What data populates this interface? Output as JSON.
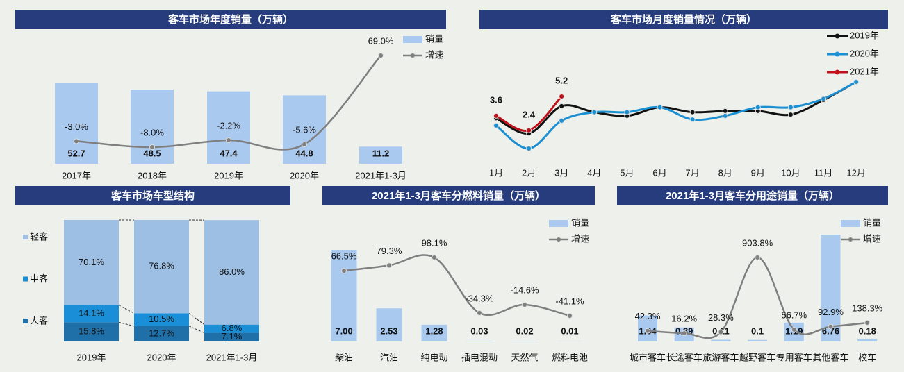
{
  "chart_data": [
    {
      "type": "combo",
      "title": "客车市场年度销量（万辆）",
      "categories": [
        "2017年",
        "2018年",
        "2019年",
        "2020年",
        "2021年1-3月"
      ],
      "series": [
        {
          "name": "销量",
          "color": "#a9c9ef",
          "values": [
            52.7,
            48.5,
            47.4,
            44.8,
            11.2
          ]
        },
        {
          "name": "增速",
          "color": "#7f7f7f",
          "values": [
            -3.0,
            -8.0,
            -2.2,
            -5.6,
            69.0
          ],
          "value_labels": [
            "-3.0%",
            "-8.0%",
            "-2.2%",
            "-5.6%",
            "69.0%"
          ]
        }
      ]
    },
    {
      "type": "line",
      "title": "客车市场月度销量情况（万辆）",
      "categories": [
        "1月",
        "2月",
        "3月",
        "4月",
        "5月",
        "6月",
        "7月",
        "8月",
        "9月",
        "10月",
        "11月",
        "12月"
      ],
      "series": [
        {
          "name": "2019年",
          "color": "#111111",
          "values": [
            3.4,
            2.15,
            4.4,
            3.9,
            3.6,
            4.3,
            3.9,
            4.0,
            4.0,
            3.7,
            4.9,
            6.4
          ]
        },
        {
          "name": "2020年",
          "color": "#1a8fd1",
          "values": [
            2.8,
            0.9,
            3.2,
            3.9,
            3.9,
            4.3,
            3.3,
            3.6,
            4.3,
            4.3,
            5.0,
            6.4
          ]
        },
        {
          "name": "2021年",
          "color": "#c0101a",
          "values": [
            3.6,
            2.4,
            5.2,
            null,
            null,
            null,
            null,
            null,
            null,
            null,
            null,
            null
          ]
        }
      ]
    },
    {
      "type": "stacked_bar",
      "title": "客车市场车型结构",
      "categories": [
        "2019年",
        "2020年",
        "2021年1-3月"
      ],
      "series": [
        {
          "name": "大客",
          "color": "#1f6fa8",
          "values": [
            15.8,
            12.7,
            7.1
          ],
          "value_labels": [
            "15.8%",
            "12.7%",
            "7.1%"
          ]
        },
        {
          "name": "中客",
          "color": "#1a8fd8",
          "values": [
            14.1,
            10.5,
            6.8
          ],
          "value_labels": [
            "14.1%",
            "10.5%",
            "6.8%"
          ]
        },
        {
          "name": "轻客",
          "color": "#9dbfe3",
          "values": [
            70.1,
            76.8,
            86.0
          ],
          "value_labels": [
            "70.1%",
            "76.8%",
            "86.0%"
          ]
        }
      ]
    },
    {
      "type": "combo",
      "title": "2021年1-3月客车分燃料销量（万辆）",
      "categories": [
        "柴油",
        "汽油",
        "纯电动",
        "插电混动",
        "天然气",
        "燃料电池"
      ],
      "series": [
        {
          "name": "销量",
          "color": "#a9c9ef",
          "values": [
            7.0,
            2.53,
            1.28,
            0.03,
            0.02,
            0.01
          ],
          "value_labels": [
            "7.00",
            "2.53",
            "1.28",
            "0.03",
            "0.02",
            "0.01"
          ]
        },
        {
          "name": "增速",
          "color": "#7f7f7f",
          "values": [
            66.5,
            79.3,
            98.1,
            -34.3,
            -14.6,
            -41.1
          ],
          "value_labels": [
            "66.5%",
            "79.3%",
            "98.1%",
            "-34.3%",
            "-14.6%",
            "-41.1%"
          ]
        }
      ]
    },
    {
      "type": "combo",
      "title": "2021年1-3月客车分用途销量（万辆）",
      "categories": [
        "城市客车",
        "长途客车",
        "旅游客车",
        "越野客车",
        "专用客车",
        "其他客车",
        "校车"
      ],
      "series": [
        {
          "name": "销量",
          "color": "#a9c9ef",
          "values": [
            1.64,
            0.89,
            0.11,
            0.1,
            1.19,
            6.76,
            0.18
          ]
        },
        {
          "name": "增速",
          "color": "#7f7f7f",
          "values": [
            42.3,
            16.2,
            28.3,
            903.8,
            56.7,
            92.9,
            138.3
          ],
          "value_labels": [
            "42.3%",
            "16.2%",
            "28.3%",
            "903.8%",
            "56.7%",
            "92.9%",
            "138.3%"
          ]
        }
      ]
    }
  ]
}
